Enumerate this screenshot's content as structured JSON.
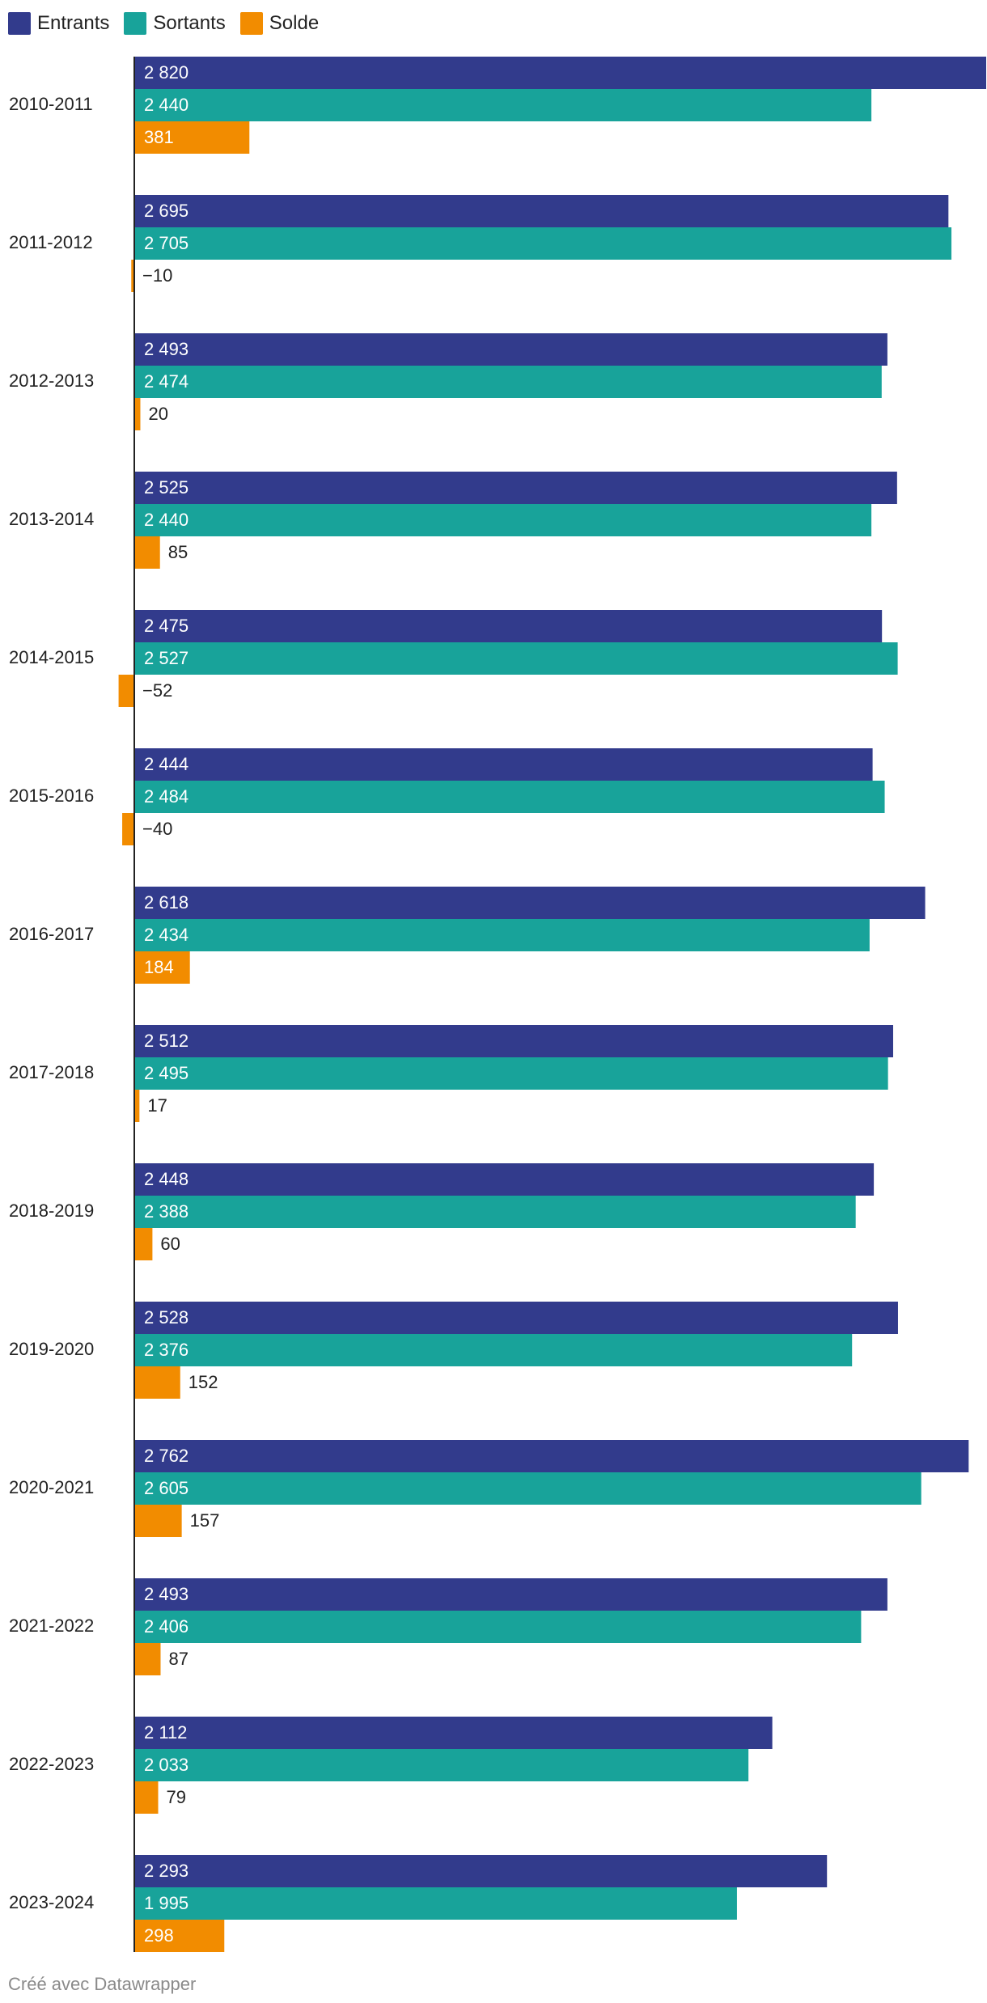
{
  "legend": [
    {
      "name": "Entrants",
      "color": "#323b8c"
    },
    {
      "name": "Sortants",
      "color": "#18a39a"
    },
    {
      "name": "Solde",
      "color": "#f28c00"
    }
  ],
  "footer": "Créé avec Datawrapper",
  "chart_data": {
    "type": "bar",
    "orientation": "horizontal",
    "categories": [
      "2010-2011",
      "2011-2012",
      "2012-2013",
      "2013-2014",
      "2014-2015",
      "2015-2016",
      "2016-2017",
      "2017-2018",
      "2018-2019",
      "2019-2020",
      "2020-2021",
      "2021-2022",
      "2022-2023",
      "2023-2024"
    ],
    "series": [
      {
        "name": "Entrants",
        "color": "#323b8c",
        "values": [
          2820,
          2695,
          2493,
          2525,
          2475,
          2444,
          2618,
          2512,
          2448,
          2528,
          2762,
          2493,
          2112,
          2293
        ],
        "labels": [
          "2 820",
          "2 695",
          "2 493",
          "2 525",
          "2 475",
          "2 444",
          "2 618",
          "2 512",
          "2 448",
          "2 528",
          "2 762",
          "2 493",
          "2 112",
          "2 293"
        ]
      },
      {
        "name": "Sortants",
        "color": "#18a39a",
        "values": [
          2440,
          2705,
          2474,
          2440,
          2527,
          2484,
          2434,
          2495,
          2388,
          2376,
          2605,
          2406,
          2033,
          1995
        ],
        "labels": [
          "2 440",
          "2 705",
          "2 474",
          "2 440",
          "2 527",
          "2 484",
          "2 434",
          "2 495",
          "2 388",
          "2 376",
          "2 605",
          "2 406",
          "2 033",
          "1 995"
        ]
      },
      {
        "name": "Solde",
        "color": "#f28c00",
        "values": [
          381,
          -10,
          20,
          85,
          -52,
          -40,
          184,
          17,
          60,
          152,
          157,
          87,
          79,
          298
        ],
        "labels": [
          "381",
          "−10",
          "20",
          "85",
          "−52",
          "−40",
          "184",
          "17",
          "60",
          "152",
          "157",
          "87",
          "79",
          "298"
        ]
      }
    ],
    "xlim": [
      -52,
      2820
    ],
    "legend_position": "top-left",
    "grid": false
  }
}
